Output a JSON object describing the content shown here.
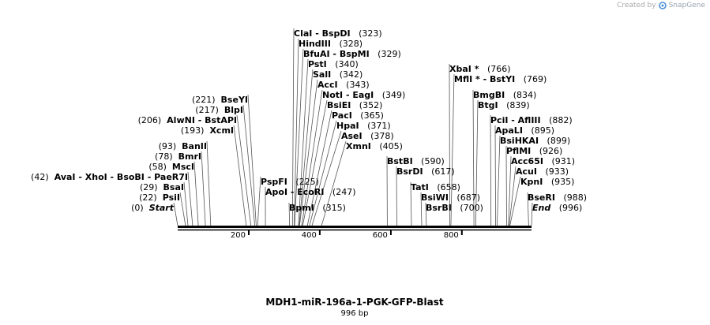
{
  "credit": {
    "prefix": "Created by",
    "brand": "SnapGene"
  },
  "title": "MDH1-miR-196a-1-PGK-GFP-Blast",
  "length_label": "996 bp",
  "sequence_length": 996,
  "ticks": [
    {
      "pos": 200,
      "label": "200"
    },
    {
      "pos": 400,
      "label": "400"
    },
    {
      "pos": 600,
      "label": "600"
    },
    {
      "pos": 800,
      "label": "800"
    }
  ],
  "features": [
    {
      "id": "feat-1",
      "names": "ClaI  - BspDI",
      "pos": 323,
      "pos_label": "(323)",
      "side": "right"
    },
    {
      "id": "feat-2",
      "names": "HindIII",
      "pos": 328,
      "pos_label": "(328)",
      "side": "right"
    },
    {
      "id": "feat-3",
      "names": "BfuAI  - BspMI",
      "pos": 329,
      "pos_label": "(329)",
      "side": "right"
    },
    {
      "id": "feat-4",
      "names": "PstI",
      "pos": 340,
      "pos_label": "(340)",
      "side": "right"
    },
    {
      "id": "feat-5",
      "names": "SalI",
      "pos": 342,
      "pos_label": "(342)",
      "side": "right"
    },
    {
      "id": "feat-6",
      "names": "AccI",
      "pos": 343,
      "pos_label": "(343)",
      "side": "right"
    },
    {
      "id": "feat-7",
      "names": "NotI  - EagI",
      "pos": 349,
      "pos_label": "(349)",
      "side": "right"
    },
    {
      "id": "feat-8",
      "names": "BsiEI",
      "pos": 352,
      "pos_label": "(352)",
      "side": "right"
    },
    {
      "id": "feat-9",
      "names": "PacI",
      "pos": 365,
      "pos_label": "(365)",
      "side": "right"
    },
    {
      "id": "feat-10",
      "names": "HpaI",
      "pos": 371,
      "pos_label": "(371)",
      "side": "right"
    },
    {
      "id": "feat-11",
      "names": "AseI",
      "pos": 378,
      "pos_label": "(378)",
      "side": "right"
    },
    {
      "id": "feat-12",
      "names": "XmnI",
      "pos": 405,
      "pos_label": "(405)",
      "side": "right"
    },
    {
      "id": "feat-13",
      "names": "PspFI",
      "pos": 225,
      "pos_label": "(225)",
      "side": "right"
    },
    {
      "id": "feat-14",
      "names": "ApoI  - EcoRI",
      "pos": 247,
      "pos_label": "(247)",
      "side": "right"
    },
    {
      "id": "feat-15",
      "names": "BpmI",
      "pos": 315,
      "pos_label": "(315)",
      "side": "right"
    },
    {
      "id": "feat-16",
      "names": "BseYI",
      "pos": 221,
      "pos_label": "(221)",
      "side": "left"
    },
    {
      "id": "feat-17",
      "names": "BlpI",
      "pos": 217,
      "pos_label": "(217)",
      "side": "left"
    },
    {
      "id": "feat-18",
      "names": "AlwNI   - BstAPI",
      "pos": 206,
      "pos_label": "(206)",
      "side": "left"
    },
    {
      "id": "feat-19",
      "names": "XcmI",
      "pos": 193,
      "pos_label": "(193)",
      "side": "left"
    },
    {
      "id": "feat-20",
      "names": "BanII",
      "pos": 93,
      "pos_label": "(93)",
      "side": "left"
    },
    {
      "id": "feat-21",
      "names": "BmrI",
      "pos": 78,
      "pos_label": "(78)",
      "side": "left"
    },
    {
      "id": "feat-22",
      "names": "MscI",
      "pos": 58,
      "pos_label": "(58)",
      "side": "left"
    },
    {
      "id": "feat-23",
      "names": "AvaI   - XhoI   - BsoBI   - PaeR7I",
      "pos": 42,
      "pos_label": "(42)",
      "side": "left"
    },
    {
      "id": "feat-24",
      "names": "BsaI",
      "pos": 29,
      "pos_label": "(29)",
      "side": "left"
    },
    {
      "id": "feat-25",
      "names": "PsiI",
      "pos": 22,
      "pos_label": "(22)",
      "side": "left"
    },
    {
      "id": "feat-26",
      "names": "Start",
      "pos": 0,
      "pos_label": "(0)",
      "side": "left",
      "italic": true
    },
    {
      "id": "feat-27",
      "names": "XbaI *",
      "pos": 766,
      "pos_label": "(766)",
      "side": "right"
    },
    {
      "id": "feat-28",
      "names": "MflI * - BstYI",
      "pos": 769,
      "pos_label": "(769)",
      "side": "right"
    },
    {
      "id": "feat-29",
      "names": "BmgBI",
      "pos": 834,
      "pos_label": "(834)",
      "side": "right"
    },
    {
      "id": "feat-30",
      "names": "BtgI",
      "pos": 839,
      "pos_label": "(839)",
      "side": "right"
    },
    {
      "id": "feat-31",
      "names": "PciI  - AflIII",
      "pos": 882,
      "pos_label": "(882)",
      "side": "right"
    },
    {
      "id": "feat-32",
      "names": "ApaLI",
      "pos": 895,
      "pos_label": "(895)",
      "side": "right"
    },
    {
      "id": "feat-33",
      "names": "BsiHKAI",
      "pos": 899,
      "pos_label": "(899)",
      "side": "right"
    },
    {
      "id": "feat-34",
      "names": "PflMI",
      "pos": 926,
      "pos_label": "(926)",
      "side": "right"
    },
    {
      "id": "feat-35",
      "names": "Acc65I",
      "pos": 931,
      "pos_label": "(931)",
      "side": "right"
    },
    {
      "id": "feat-36",
      "names": "AcuI",
      "pos": 933,
      "pos_label": "(933)",
      "side": "right"
    },
    {
      "id": "feat-37",
      "names": "KpnI",
      "pos": 935,
      "pos_label": "(935)",
      "side": "right"
    },
    {
      "id": "feat-38",
      "names": "BseRI",
      "pos": 988,
      "pos_label": "(988)",
      "side": "right"
    },
    {
      "id": "feat-39",
      "names": "End",
      "pos": 996,
      "pos_label": "(996)",
      "side": "right",
      "italic": true
    },
    {
      "id": "feat-40",
      "names": "BstBI",
      "pos": 590,
      "pos_label": "(590)",
      "side": "right"
    },
    {
      "id": "feat-41",
      "names": "BsrDI",
      "pos": 617,
      "pos_label": "(617)",
      "side": "right"
    },
    {
      "id": "feat-42",
      "names": "TatI",
      "pos": 658,
      "pos_label": "(658)",
      "side": "right"
    },
    {
      "id": "feat-43",
      "names": "BsiWI",
      "pos": 687,
      "pos_label": "(687)",
      "side": "right"
    },
    {
      "id": "feat-44",
      "names": "BsrBI",
      "pos": 700,
      "pos_label": "(700)",
      "side": "right"
    }
  ],
  "colors": {
    "ink": "#000000",
    "line": "#555555",
    "credit": "#a8a8a8"
  }
}
